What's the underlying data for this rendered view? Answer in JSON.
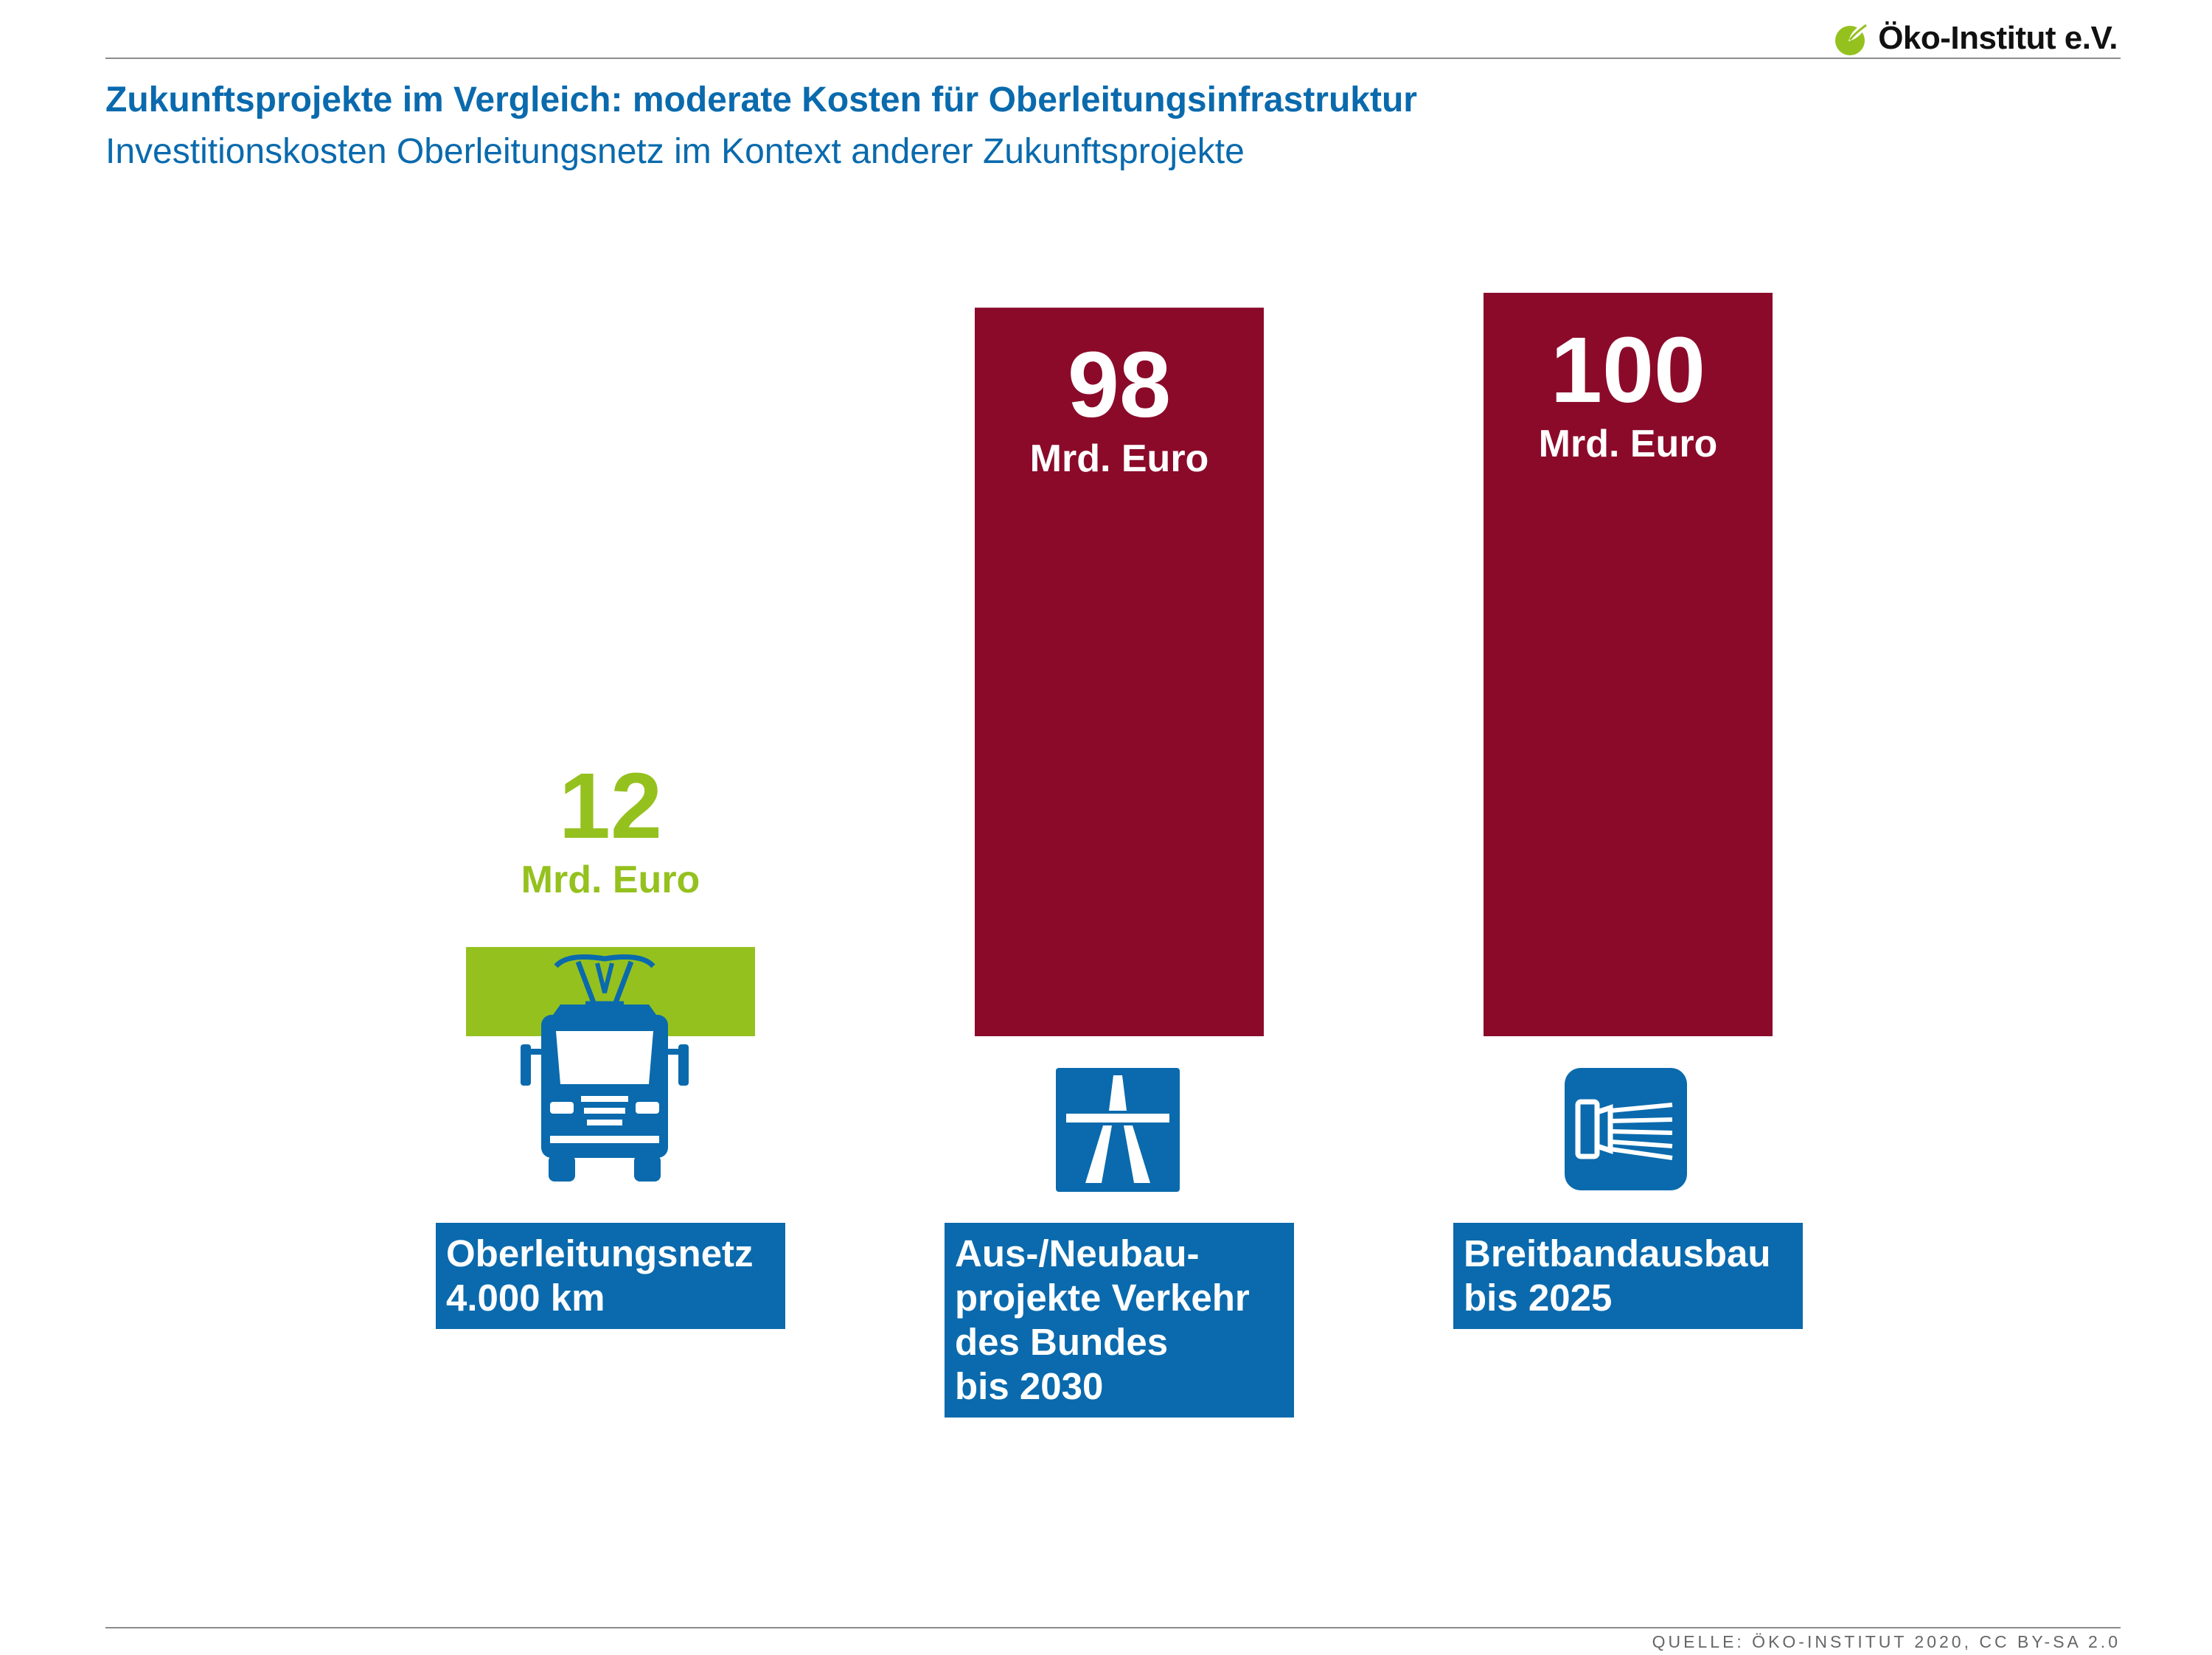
{
  "header": {
    "logo_text": "Öko-Institut e.V.",
    "logo_icon": "leaf-icon",
    "title": "Zukunftsprojekte im Vergleich: moderate Kosten für Oberleitungsinfrastruktur",
    "subtitle": "Investitionskosten Oberleitungsnetz im Kontext anderer Zukunftsprojekte"
  },
  "footer": {
    "source": "QUELLE: ÖKO-INSTITUT 2020, CC BY-SA 2.0"
  },
  "colors": {
    "highlight": "#95c11f",
    "comparison": "#8b0a2a",
    "label_blue": "#0a6aad",
    "title_blue": "#0a6aad",
    "white": "#ffffff"
  },
  "categories": [
    {
      "lines": [
        "Oberleitungsnetz",
        "4.000 km"
      ],
      "icon": "overhead-line-truck-icon"
    },
    {
      "lines": [
        "Aus-/Neubau-",
        "projekte Verkehr",
        "des Bundes",
        "bis 2030"
      ],
      "icon": "motorway-sign-icon"
    },
    {
      "lines": [
        "Breitbandausbau",
        "bis 2025"
      ],
      "icon": "broadband-cable-icon"
    }
  ],
  "chart_data": {
    "type": "bar",
    "categories": [
      "Oberleitungsnetz 4.000 km",
      "Aus-/Neubauprojekte Verkehr des Bundes bis 2030",
      "Breitbandausbau bis 2025"
    ],
    "values": [
      12,
      98,
      100
    ],
    "value_labels": [
      "12",
      "98",
      "100"
    ],
    "unit": "Mrd. Euro",
    "bar_colors": [
      "#95c11f",
      "#8b0a2a",
      "#8b0a2a"
    ],
    "title": "Zukunftsprojekte im Vergleich: moderate Kosten für Oberleitungsinfrastruktur",
    "xlabel": "",
    "ylabel": "",
    "ylim": [
      0,
      100
    ],
    "grid": false,
    "legend": "none"
  }
}
